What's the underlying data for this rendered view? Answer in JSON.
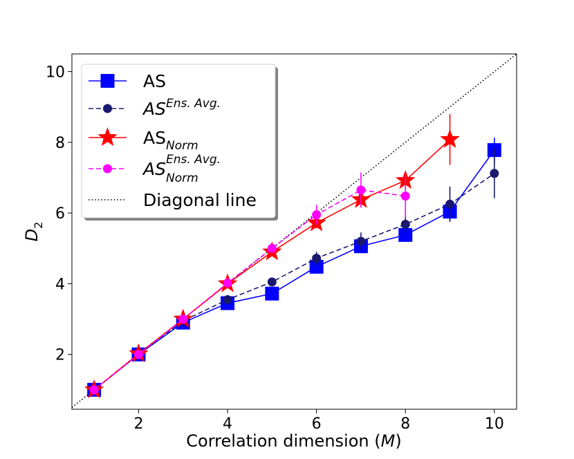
{
  "chart_data": {
    "type": "line",
    "title": "",
    "xlabel": "Correlation dimension (M)",
    "xlabel_text": "Correlation dimension (",
    "xlabel_var": "M",
    "xlabel_close": ")",
    "ylabel": "D2",
    "ylabel_var": "D",
    "ylabel_sub": "2",
    "xlim": [
      0.5,
      10.5
    ],
    "ylim": [
      0.45,
      10.5
    ],
    "xticks": [
      2,
      4,
      6,
      8,
      10
    ],
    "yticks": [
      2,
      4,
      6,
      8,
      10
    ],
    "grid": false,
    "legend_position": "top-left",
    "series": [
      {
        "name": "AS",
        "legend_main": "AS",
        "legend_sup": "",
        "legend_sub": "",
        "italic": false,
        "color": "#0000ff",
        "line_style": "solid",
        "marker": "square",
        "x": [
          1,
          2,
          3,
          4,
          5,
          6,
          7,
          8,
          9,
          10
        ],
        "y": [
          1.0,
          2.0,
          2.9,
          3.45,
          3.72,
          4.48,
          5.06,
          5.38,
          6.04,
          7.78
        ],
        "yerr": [
          0.05,
          0.05,
          0.05,
          0.08,
          0.08,
          0.1,
          0.12,
          0.15,
          0.25,
          0.35
        ]
      },
      {
        "name": "AS Ens. Avg.",
        "legend_main": "AS",
        "legend_sup": "Ens. Avg.",
        "legend_sub": "",
        "italic": true,
        "color": "#191970",
        "line_style": "dashed",
        "marker": "circle",
        "x": [
          1,
          2,
          3,
          4,
          5,
          6,
          7,
          8,
          9,
          10
        ],
        "y": [
          1.0,
          2.0,
          2.95,
          3.55,
          4.05,
          4.72,
          5.2,
          5.68,
          6.25,
          7.12
        ],
        "yerr": [
          0.04,
          0.05,
          0.06,
          0.1,
          0.12,
          0.18,
          0.25,
          0.3,
          0.5,
          0.7
        ]
      },
      {
        "name": "AS Norm",
        "legend_main": "AS",
        "legend_sup": "",
        "legend_sub": "Norm",
        "italic": false,
        "color": "#ff0000",
        "line_style": "solid",
        "marker": "star",
        "x": [
          1,
          2,
          3,
          4,
          5,
          6,
          7,
          8,
          9
        ],
        "y": [
          1.0,
          2.02,
          3.0,
          4.0,
          4.9,
          5.72,
          6.38,
          6.92,
          8.08
        ],
        "yerr": [
          0.04,
          0.05,
          0.06,
          0.08,
          0.1,
          0.15,
          0.2,
          0.25,
          0.72
        ]
      },
      {
        "name": "AS Norm Ens. Avg.",
        "legend_main": "AS",
        "legend_sup": "Ens. Avg.",
        "legend_sub": "Norm",
        "italic": true,
        "color": "#ff00ff",
        "line_style": "dashed",
        "marker": "circle",
        "x": [
          1,
          2,
          3,
          4,
          5,
          6,
          7,
          8
        ],
        "y": [
          1.0,
          2.0,
          3.0,
          4.02,
          5.0,
          5.95,
          6.65,
          6.48
        ],
        "yerr": [
          0.03,
          0.04,
          0.06,
          0.08,
          0.12,
          0.28,
          0.5,
          0.6
        ]
      },
      {
        "name": "Diagonal line",
        "legend_main": "Diagonal line",
        "legend_sup": "",
        "legend_sub": "",
        "italic": false,
        "color": "#000000",
        "line_style": "dotted",
        "marker": "none",
        "x": [
          0.5,
          10.5
        ],
        "y": [
          0.5,
          10.5
        ],
        "yerr": []
      }
    ]
  }
}
